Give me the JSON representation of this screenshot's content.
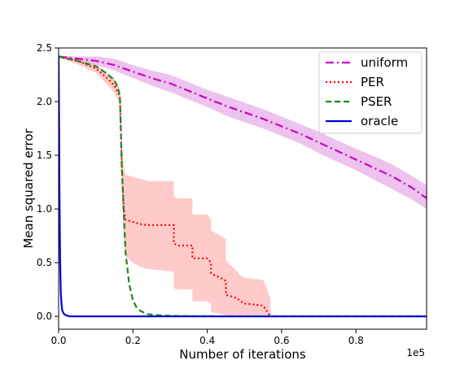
{
  "chart_data": {
    "type": "line",
    "xlabel": "Number of iterations",
    "ylabel": "Mean squared error",
    "x_offset_label": "1e5",
    "xlim": [
      0,
      0.99
    ],
    "ylim": [
      -0.12,
      2.5
    ],
    "xticks": [
      0.0,
      0.2,
      0.4,
      0.6,
      0.8
    ],
    "xtick_labels": [
      "0.0",
      "0.2",
      "0.4",
      "0.6",
      "0.8"
    ],
    "yticks": [
      0.0,
      0.5,
      1.0,
      1.5,
      2.0,
      2.5
    ],
    "ytick_labels": [
      "0.0",
      "0.5",
      "1.0",
      "1.5",
      "2.0",
      "2.5"
    ],
    "legend_position": "top-right",
    "grid": false,
    "series": [
      {
        "name": "uniform",
        "color": "#cc00cc",
        "style": "dash-dot",
        "band_color": "#e5a8e5",
        "x": [
          0.0,
          0.05,
          0.1,
          0.15,
          0.2,
          0.25,
          0.3,
          0.35,
          0.4,
          0.45,
          0.5,
          0.55,
          0.6,
          0.65,
          0.7,
          0.75,
          0.8,
          0.85,
          0.9,
          0.95,
          0.99
        ],
        "values": [
          2.42,
          2.4,
          2.38,
          2.34,
          2.28,
          2.22,
          2.17,
          2.1,
          2.03,
          1.96,
          1.9,
          1.84,
          1.77,
          1.7,
          1.62,
          1.54,
          1.46,
          1.38,
          1.3,
          1.2,
          1.1
        ],
        "band_lower": [
          2.41,
          2.38,
          2.34,
          2.29,
          2.22,
          2.15,
          2.09,
          2.02,
          1.95,
          1.87,
          1.81,
          1.75,
          1.68,
          1.61,
          1.52,
          1.44,
          1.36,
          1.27,
          1.18,
          1.09,
          1.0
        ],
        "band_upper": [
          2.43,
          2.42,
          2.42,
          2.4,
          2.34,
          2.29,
          2.25,
          2.18,
          2.11,
          2.05,
          1.99,
          1.93,
          1.86,
          1.79,
          1.72,
          1.64,
          1.56,
          1.49,
          1.41,
          1.31,
          1.22
        ]
      },
      {
        "name": "PER",
        "color": "#ff0000",
        "style": "dotted",
        "band_color": "#ffb3b3",
        "x": [
          0.0,
          0.05,
          0.1,
          0.13,
          0.15,
          0.165,
          0.17,
          0.175,
          0.18,
          0.2,
          0.22,
          0.24,
          0.3,
          0.31,
          0.31,
          0.32,
          0.35,
          0.36,
          0.36,
          0.4,
          0.41,
          0.41,
          0.44,
          0.45,
          0.45,
          0.48,
          0.49,
          0.5,
          0.55,
          0.56,
          0.57
        ],
        "values": [
          2.42,
          2.38,
          2.31,
          2.22,
          2.15,
          2.05,
          1.4,
          1.0,
          0.9,
          0.88,
          0.86,
          0.85,
          0.85,
          0.85,
          0.68,
          0.66,
          0.66,
          0.66,
          0.54,
          0.54,
          0.5,
          0.4,
          0.35,
          0.33,
          0.2,
          0.17,
          0.14,
          0.12,
          0.1,
          0.05,
          0.0
        ],
        "band_lower": [
          2.41,
          2.35,
          2.27,
          2.16,
          2.08,
          1.98,
          1.22,
          0.72,
          0.56,
          0.5,
          0.46,
          0.44,
          0.42,
          0.42,
          0.26,
          0.25,
          0.25,
          0.25,
          0.14,
          0.14,
          0.12,
          0.04,
          0.02,
          0.0,
          0.0,
          0.0,
          0.0,
          0.0,
          0.0,
          0.0,
          0.0
        ],
        "band_upper": [
          2.43,
          2.41,
          2.35,
          2.27,
          2.22,
          2.12,
          1.6,
          1.38,
          1.32,
          1.3,
          1.28,
          1.26,
          1.26,
          1.26,
          1.12,
          1.1,
          1.1,
          1.1,
          0.95,
          0.95,
          0.9,
          0.8,
          0.74,
          0.72,
          0.52,
          0.42,
          0.38,
          0.36,
          0.34,
          0.26,
          0.16
        ]
      },
      {
        "name": "PSER",
        "color": "#1a8a1a",
        "style": "dashed",
        "x": [
          0.0,
          0.05,
          0.1,
          0.13,
          0.15,
          0.16,
          0.165,
          0.17,
          0.175,
          0.18,
          0.19,
          0.2,
          0.21,
          0.22,
          0.24,
          0.27,
          0.3,
          0.35,
          0.4,
          0.5,
          0.6,
          0.8,
          0.99
        ],
        "values": [
          2.42,
          2.38,
          2.33,
          2.26,
          2.2,
          2.12,
          2.05,
          1.4,
          1.0,
          0.6,
          0.3,
          0.15,
          0.08,
          0.05,
          0.02,
          0.01,
          0.005,
          0.002,
          0.001,
          0.0,
          0.0,
          0.0,
          0.0
        ]
      },
      {
        "name": "oracle",
        "color": "#0000dd",
        "style": "solid",
        "x": [
          0.0,
          0.001,
          0.002,
          0.003,
          0.004,
          0.005,
          0.006,
          0.008,
          0.01,
          0.015,
          0.02,
          0.03,
          0.99
        ],
        "values": [
          2.42,
          1.9,
          1.3,
          0.85,
          0.55,
          0.35,
          0.22,
          0.1,
          0.05,
          0.02,
          0.01,
          0.0,
          0.0
        ]
      }
    ]
  }
}
